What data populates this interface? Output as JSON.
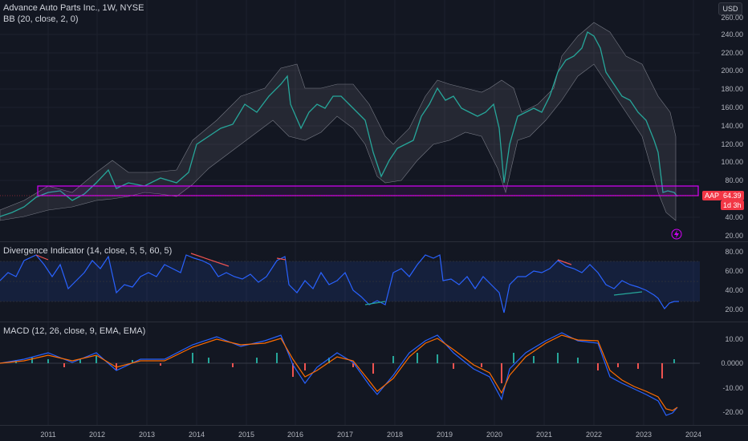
{
  "header": {
    "symbol_line": "Advance Auto Parts Inc., 1W, NYSE",
    "bb_line": "BB (20, close, 2, 0)",
    "currency_button": "USD"
  },
  "price_axis": {
    "labels": [
      "260.00",
      "240.00",
      "220.00",
      "200.00",
      "180.00",
      "160.00",
      "140.00",
      "120.00",
      "100.00",
      "80.00",
      "40.00",
      "20.00"
    ]
  },
  "badges": {
    "ticker": "AAP",
    "price": "64.39",
    "countdown": "1d 3h"
  },
  "divergence": {
    "title": "Divergence Indicator (14, close, 5, 5, 60, 5)",
    "labels": [
      "80.00",
      "60.00",
      "40.00",
      "20.00"
    ]
  },
  "macd": {
    "title": "MACD (12, 26, close, 9, EMA, EMA)",
    "labels": [
      "10.00",
      "0.0000",
      "-10.00",
      "-20.00"
    ]
  },
  "time_axis": {
    "labels": [
      "2011",
      "2012",
      "2013",
      "2014",
      "2015",
      "2016",
      "2017",
      "2018",
      "2019",
      "2020",
      "2021",
      "2022",
      "2023",
      "2024"
    ]
  },
  "colors": {
    "background": "#131722",
    "up": "#26a69a",
    "down": "#ef5350",
    "zone": "#d500f9",
    "rsi_line": "#2962ff",
    "macd_line": "#2962ff",
    "signal_line": "#ff6d00",
    "badge_red": "#f23645"
  }
}
